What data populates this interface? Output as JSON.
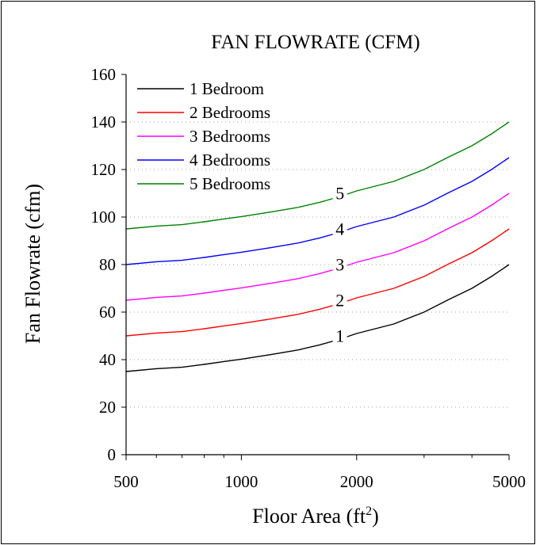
{
  "chart_data": {
    "type": "line",
    "title": "FAN FLOWRATE (CFM)",
    "xlabel": "Floor Area (ft",
    "xlabel_sup": "2",
    "xlabel_close": ")",
    "ylabel": "Fan Flowrate (cfm)",
    "x_scale": "log",
    "xlim": [
      500,
      5000
    ],
    "ylim": [
      0,
      160
    ],
    "x_ticks": [
      500,
      1000,
      2000,
      5000
    ],
    "x_tick_labels": [
      "500",
      "1000",
      "2000",
      "5000"
    ],
    "y_ticks": [
      0,
      20,
      40,
      60,
      80,
      100,
      120,
      140,
      160
    ],
    "y_tick_labels": [
      "0",
      "20",
      "40",
      "60",
      "80",
      "100",
      "120",
      "140",
      "160"
    ],
    "grid": "horizontal dotted",
    "legend_position": "top-left",
    "x": [
      500,
      600,
      700,
      800,
      900,
      1000,
      1200,
      1400,
      1600,
      1800,
      2000,
      2500,
      3000,
      3500,
      4000,
      4500,
      5000
    ],
    "series": [
      {
        "name": "1 Bedroom",
        "inline_label": "1",
        "label_x": 1800,
        "color": "#000000",
        "values": [
          35,
          36.2,
          36.8,
          38.0,
          39.2,
          40.2,
          42.2,
          44.0,
          46.2,
          48.5,
          51.0,
          55.0,
          60.0,
          65.5,
          70.0,
          75.0,
          80.0
        ]
      },
      {
        "name": "2 Bedrooms",
        "inline_label": "2",
        "label_x": 1800,
        "color": "#ff0000",
        "values": [
          50,
          51.2,
          51.8,
          53.0,
          54.2,
          55.2,
          57.2,
          59.0,
          61.2,
          63.5,
          66.0,
          70.0,
          75.0,
          80.5,
          85.0,
          90.0,
          95.0
        ]
      },
      {
        "name": "3 Bedrooms",
        "inline_label": "3",
        "label_x": 1800,
        "color": "#ff00ff",
        "values": [
          65,
          66.2,
          66.8,
          68.0,
          69.2,
          70.2,
          72.2,
          74.0,
          76.2,
          78.5,
          81.0,
          85.0,
          90.0,
          95.5,
          100.0,
          105.0,
          110.0
        ]
      },
      {
        "name": "4 Bedrooms",
        "inline_label": "4",
        "label_x": 1800,
        "color": "#0000ff",
        "values": [
          80,
          81.2,
          81.8,
          83.0,
          84.2,
          85.2,
          87.2,
          89.0,
          91.2,
          93.5,
          96.0,
          100.0,
          105.0,
          110.5,
          115.0,
          120.0,
          125.0
        ]
      },
      {
        "name": "5 Bedrooms",
        "inline_label": "5",
        "label_x": 1800,
        "color": "#008000",
        "values": [
          95,
          96.2,
          96.8,
          98.0,
          99.2,
          100.2,
          102.2,
          104.0,
          106.2,
          108.5,
          111.0,
          115.0,
          120.0,
          125.5,
          130.0,
          135.0,
          140.0
        ]
      }
    ]
  }
}
